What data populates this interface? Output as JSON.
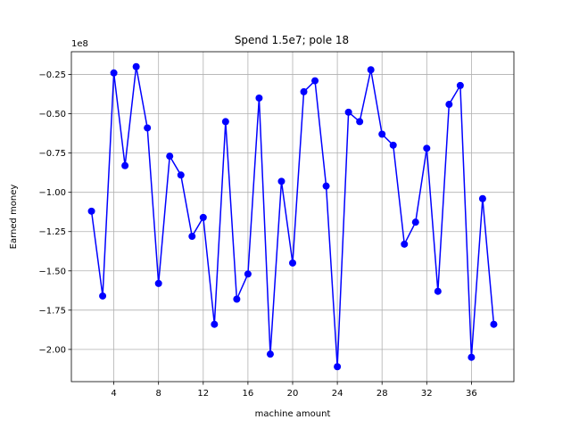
{
  "chart_data": {
    "type": "line",
    "title": "Spend 1.5e7; pole 18",
    "xlabel": "machine amount",
    "ylabel": "Earned money",
    "y_scale_label": "1e8",
    "x": [
      2,
      3,
      4,
      5,
      6,
      7,
      8,
      9,
      10,
      11,
      12,
      13,
      14,
      15,
      16,
      17,
      18,
      19,
      20,
      21,
      22,
      23,
      24,
      25,
      26,
      27,
      28,
      29,
      30,
      31,
      32,
      33,
      34,
      35,
      36,
      37,
      38
    ],
    "values": [
      -1.12,
      -1.66,
      -0.24,
      -0.83,
      -0.2,
      -0.59,
      -1.58,
      -0.77,
      -0.89,
      -1.28,
      -1.16,
      -1.84,
      -0.55,
      -1.68,
      -1.52,
      -0.4,
      -2.03,
      -0.93,
      -1.45,
      -0.36,
      -0.29,
      -0.96,
      -2.11,
      -0.49,
      -0.55,
      -0.22,
      -0.63,
      -0.7,
      -1.33,
      -1.19,
      -0.72,
      -1.63,
      -0.44,
      -0.32,
      -2.05,
      -1.04,
      -1.84
    ],
    "xticks": [
      4,
      8,
      12,
      16,
      20,
      24,
      28,
      32,
      36
    ],
    "xtick_labels": [
      "4",
      "8",
      "12",
      "16",
      "20",
      "24",
      "28",
      "32",
      "36"
    ],
    "yticks": [
      -0.25,
      -0.5,
      -0.75,
      -1.0,
      -1.25,
      -1.5,
      -1.75,
      -2.0
    ],
    "ytick_labels": [
      "−0.25",
      "−0.50",
      "−0.75",
      "−1.00",
      "−1.25",
      "−1.50",
      "−1.75",
      "−2.00"
    ],
    "xlim": [
      0.2,
      39.8
    ],
    "ylim": [
      -2.205,
      -0.105
    ],
    "grid": true,
    "line_color": "#0000ff",
    "marker_color": "#0000ff"
  }
}
